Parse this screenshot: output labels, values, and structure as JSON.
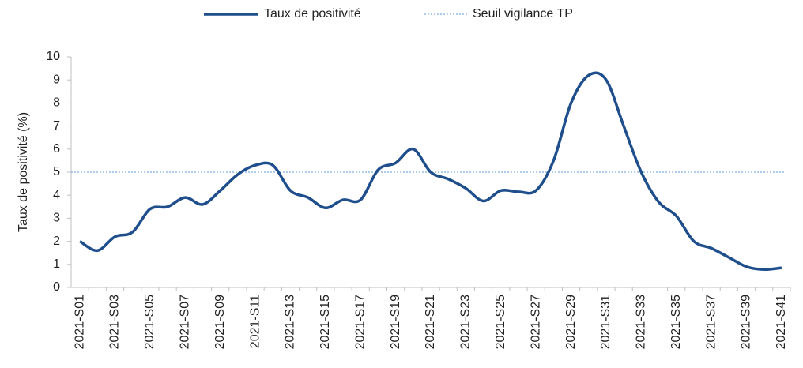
{
  "chart_data": {
    "type": "line",
    "y_label": "Taux de positivité (%)",
    "categories": [
      "2021-S01",
      null,
      "2021-S03",
      null,
      "2021-S05",
      null,
      "2021-S07",
      null,
      "2021-S09",
      null,
      "2021-S11",
      null,
      "2021-S13",
      null,
      "2021-S15",
      null,
      "2021-S17",
      null,
      "2021-S19",
      null,
      "2021-S21",
      null,
      "2021-S23",
      null,
      "2021-S25",
      null,
      "2021-S27",
      null,
      "2021-S29",
      null,
      "2021-S31",
      null,
      "2021-S33",
      null,
      "2021-S35",
      null,
      "2021-S37",
      null,
      "2021-S39",
      null,
      "2021-S41"
    ],
    "series": [
      {
        "name": "Taux de positivité",
        "color": "#1f4e8c",
        "values": [
          2.0,
          1.6,
          2.2,
          2.4,
          3.4,
          3.5,
          3.9,
          3.6,
          4.2,
          4.9,
          5.3,
          5.3,
          4.2,
          3.9,
          3.45,
          3.8,
          3.8,
          5.1,
          5.4,
          6.0,
          5.0,
          4.7,
          4.3,
          3.75,
          4.2,
          4.15,
          4.2,
          5.5,
          8.0,
          9.2,
          9.0,
          7.0,
          5.0,
          3.7,
          3.1,
          2.0,
          1.7,
          1.3,
          0.9,
          0.78,
          0.85
        ]
      }
    ],
    "threshold": {
      "name": "Seuil vigilance TP",
      "color": "#5b9bd5",
      "value": 5
    },
    "ylim": [
      0,
      10
    ],
    "yticks": [
      0,
      1,
      2,
      3,
      4,
      5,
      6,
      7,
      8,
      9,
      10
    ],
    "grid": false
  }
}
